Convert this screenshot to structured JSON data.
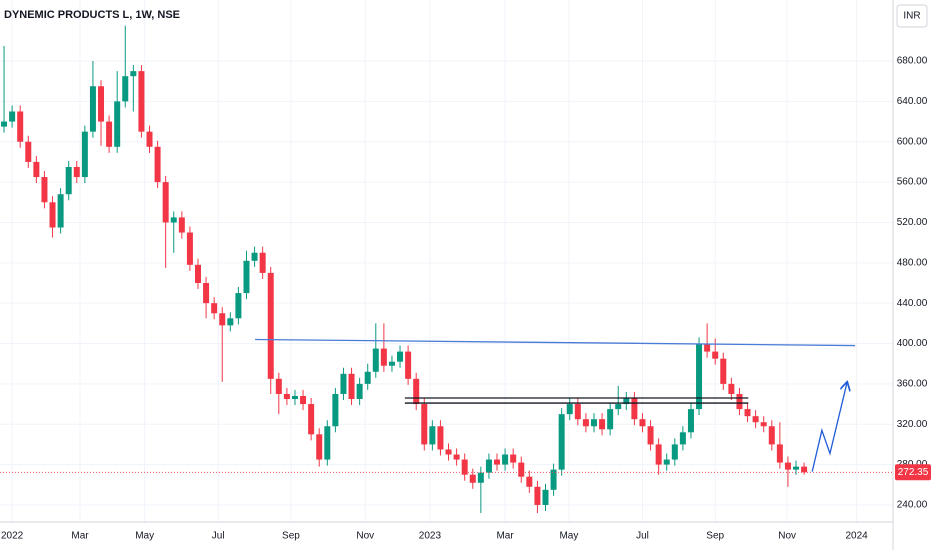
{
  "chart_data": {
    "type": "candlestick",
    "title": "DYNEMIC PRODUCTS L, 1W, NSE",
    "currency": "INR",
    "last_price": 272.35,
    "up_color": "#089981",
    "down_color": "#f23645",
    "grid": true,
    "open": [
      615,
      620,
      630,
      600,
      580,
      565,
      540,
      515,
      548,
      575,
      565,
      610,
      655,
      620,
      595,
      640,
      665,
      670,
      610,
      595,
      560,
      520,
      525,
      510,
      478,
      460,
      440,
      430,
      418,
      425,
      450,
      482,
      490,
      470,
      365,
      350,
      345,
      348,
      340,
      310,
      285,
      318,
      350,
      370,
      345,
      360,
      372,
      395,
      378,
      382,
      392,
      365,
      340,
      300,
      318,
      295,
      290,
      285,
      270,
      262,
      272,
      285,
      280,
      290,
      282,
      268,
      258,
      240,
      255,
      275,
      330,
      340,
      325,
      318,
      325,
      315,
      335,
      340,
      346,
      325,
      318,
      300,
      280,
      285,
      300,
      312,
      335,
      400,
      392,
      385,
      360,
      350,
      335,
      328,
      322,
      318,
      300,
      282,
      275,
      278
    ],
    "high": [
      695,
      636,
      636,
      606,
      586,
      571,
      546,
      554,
      581,
      581,
      616,
      680,
      661,
      626,
      670,
      715,
      676,
      676,
      616,
      601,
      566,
      531,
      531,
      516,
      484,
      466,
      446,
      436,
      431,
      456,
      492,
      496,
      496,
      476,
      371,
      356,
      354,
      354,
      346,
      316,
      324,
      356,
      376,
      376,
      366,
      380,
      420,
      420,
      388,
      398,
      398,
      371,
      346,
      324,
      324,
      301,
      296,
      291,
      276,
      278,
      291,
      291,
      296,
      296,
      288,
      274,
      264,
      261,
      281,
      336,
      346,
      346,
      331,
      331,
      331,
      341,
      358,
      352,
      352,
      331,
      324,
      306,
      291,
      306,
      318,
      341,
      406,
      420,
      405,
      391,
      366,
      356,
      341,
      334,
      328,
      324,
      322,
      288,
      284,
      282
    ],
    "low": [
      609,
      614,
      594,
      574,
      559,
      534,
      505,
      509,
      542,
      559,
      559,
      604,
      596,
      589,
      589,
      634,
      630,
      604,
      589,
      554,
      475,
      490,
      504,
      472,
      454,
      425,
      424,
      362,
      412,
      419,
      444,
      476,
      464,
      350,
      330,
      339,
      339,
      334,
      304,
      278,
      279,
      312,
      344,
      339,
      339,
      354,
      366,
      372,
      372,
      376,
      359,
      334,
      294,
      294,
      289,
      284,
      279,
      264,
      256,
      232,
      266,
      274,
      274,
      276,
      262,
      252,
      232,
      234,
      249,
      269,
      324,
      319,
      312,
      312,
      309,
      309,
      329,
      334,
      319,
      312,
      294,
      270,
      274,
      279,
      294,
      306,
      329,
      386,
      379,
      354,
      344,
      329,
      322,
      316,
      312,
      294,
      276,
      258,
      270,
      270
    ],
    "close": [
      620,
      630,
      600,
      580,
      565,
      540,
      515,
      548,
      575,
      565,
      610,
      655,
      620,
      595,
      640,
      665,
      670,
      610,
      595,
      560,
      520,
      525,
      510,
      478,
      460,
      440,
      430,
      418,
      425,
      450,
      482,
      490,
      470,
      365,
      350,
      345,
      348,
      340,
      310,
      285,
      318,
      350,
      370,
      345,
      360,
      372,
      395,
      378,
      382,
      392,
      365,
      340,
      300,
      318,
      295,
      290,
      285,
      270,
      262,
      272,
      285,
      280,
      290,
      282,
      268,
      258,
      240,
      255,
      275,
      330,
      340,
      325,
      318,
      325,
      315,
      335,
      340,
      346,
      325,
      318,
      300,
      280,
      285,
      300,
      312,
      335,
      400,
      392,
      385,
      360,
      350,
      335,
      328,
      322,
      318,
      300,
      282,
      275,
      278,
      272.35
    ],
    "xlim": [
      -0.5,
      110
    ],
    "ylim": [
      223.1,
      740.5
    ],
    "xticks": [
      {
        "value": 1,
        "label": "2022"
      },
      {
        "value": 9.4,
        "label": "Mar"
      },
      {
        "value": 17.4,
        "label": "May"
      },
      {
        "value": 26.5,
        "label": "Jul"
      },
      {
        "value": 35.5,
        "label": "Sep"
      },
      {
        "value": 44.7,
        "label": "Nov"
      },
      {
        "value": 52.7,
        "label": "2023"
      },
      {
        "value": 62,
        "label": "Mar"
      },
      {
        "value": 69.9,
        "label": "May"
      },
      {
        "value": 79,
        "label": "Jul"
      },
      {
        "value": 88,
        "label": "Sep"
      },
      {
        "value": 96.9,
        "label": "Nov"
      },
      {
        "value": 105.5,
        "label": "2024"
      }
    ],
    "yticks": [
      {
        "value": 240,
        "label": "240.00"
      },
      {
        "value": 280,
        "label": "280.00"
      },
      {
        "value": 320,
        "label": "320.00"
      },
      {
        "value": 360,
        "label": "360.00"
      },
      {
        "value": 400,
        "label": "400.00"
      },
      {
        "value": 440,
        "label": "440.00"
      },
      {
        "value": 480,
        "label": "480.00"
      },
      {
        "value": 520,
        "label": "520.00"
      },
      {
        "value": 560,
        "label": "560.00"
      },
      {
        "value": 600,
        "label": "600.00"
      },
      {
        "value": 640,
        "label": "640.00"
      },
      {
        "value": 680,
        "label": "680.00"
      }
    ],
    "annotations": [
      {
        "color": "#4a7bd6",
        "x": [
          31.06,
          105.3
        ],
        "y": [
          404,
          398
        ]
      },
      {
        "color": "#131722",
        "x": [
          49.6,
          92.1
        ],
        "y": [
          346,
          346
        ]
      },
      {
        "color": "#131722",
        "x": [
          49.6,
          92.1
        ],
        "y": [
          341,
          341
        ]
      },
      {
        "color": "#1e5bd6",
        "x": [
          100,
          101.2,
          102.2,
          104.3
        ],
        "y": [
          273,
          314,
          291,
          361
        ]
      }
    ]
  }
}
